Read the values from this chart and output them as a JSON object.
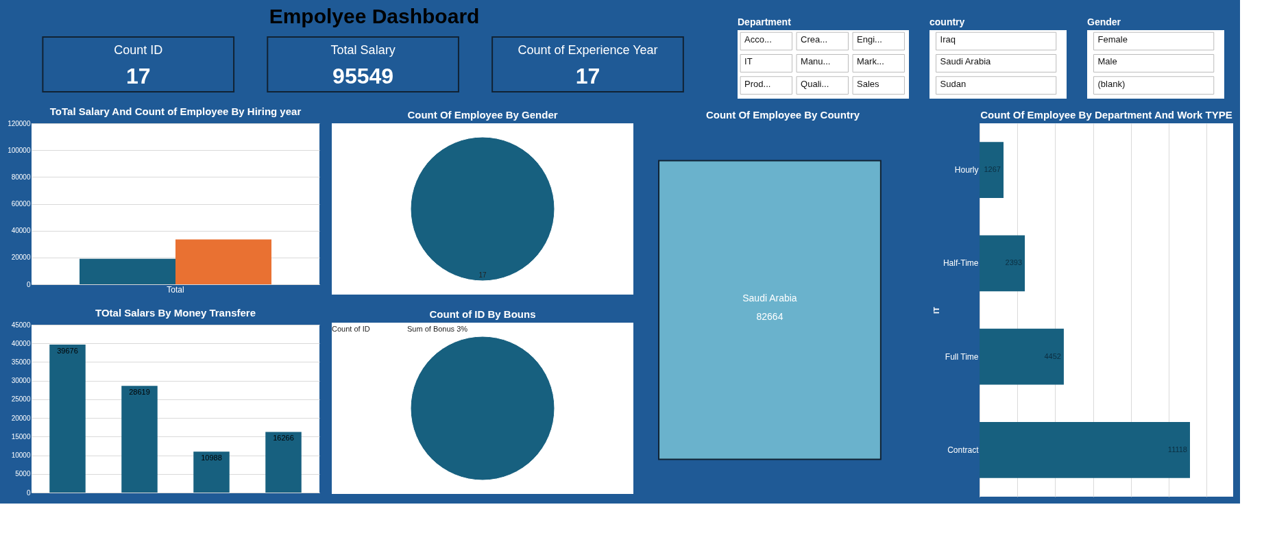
{
  "chart_data": [
    {
      "type": "other",
      "title": "Empolyee Dashboard",
      "categories": [
        "Count ID",
        "Total Salary",
        "Count of Experience Year"
      ],
      "values": [
        17,
        95549,
        17
      ],
      "colors": [
        "#1f5a96",
        "#1f5a96",
        "#1f5a96"
      ],
      "data_labels": true
    },
    {
      "type": "other",
      "title": "Department",
      "annotations": [
        "Acco...",
        "Crea...",
        "Engi...",
        "IT",
        "Manu...",
        "Mark...",
        "Prod...",
        "Quali...",
        "Sales"
      ]
    },
    {
      "type": "other",
      "title": "country",
      "annotations": [
        "Iraq",
        "Saudi Arabia",
        "Sudan"
      ]
    },
    {
      "type": "other",
      "title": "Gender",
      "annotations": [
        "Female",
        "Male",
        "(blank)"
      ]
    },
    {
      "type": "bar",
      "title": "ToTal Salary And Count of Employee By Hiring year",
      "categories": [
        "Total"
      ],
      "series": [
        {
          "color": "#17607f",
          "values": [
            19000
          ]
        },
        {
          "color": "#e97132",
          "values": [
            33500
          ]
        }
      ],
      "ylim": [
        0,
        120000
      ],
      "yticks": [
        0,
        20000,
        40000,
        60000,
        80000,
        100000,
        120000
      ],
      "grid": "y"
    },
    {
      "type": "pie",
      "title": "Count Of Employee By Gender",
      "categories": [
        null
      ],
      "values": [
        17
      ],
      "colors": [
        "#17607f"
      ],
      "data_labels": true
    },
    {
      "type": "other",
      "title": "Count Of Employee By Country",
      "categories": [
        "Saudi Arabia"
      ],
      "values": [
        82664
      ],
      "colors": [
        "#6ab2cc"
      ],
      "data_labels": true
    },
    {
      "type": "bar",
      "orientation": "horizontal",
      "title": "Count Of Employee By Department And Work TYPE",
      "ylabel": "IT",
      "categories": [
        "Hourly",
        "Half-Time",
        "Full Time",
        "Contract"
      ],
      "values": [
        1267,
        2393,
        4452,
        11118
      ],
      "color": "#17607f",
      "xlim": [
        0,
        13400
      ],
      "xticks": [
        {
          "value": 0,
          "label": null
        },
        {
          "value": 2000,
          "label": null
        },
        {
          "value": 4000,
          "label": null
        },
        {
          "value": 6000,
          "label": null
        },
        {
          "value": 8000,
          "label": null
        },
        {
          "value": 10000,
          "label": null
        },
        {
          "value": 12000,
          "label": null
        }
      ],
      "grid": "x",
      "tick_labels": "y",
      "data_labels": true
    },
    {
      "type": "bar",
      "title": "TOtal Salars By Money Transfere",
      "categories": [
        null,
        null,
        null,
        null
      ],
      "values": [
        39676,
        28619,
        10988,
        16266
      ],
      "color": "#17607f",
      "ylim": [
        0,
        45000
      ],
      "yticks": [
        0,
        5000,
        10000,
        15000,
        20000,
        25000,
        30000,
        35000,
        40000,
        45000
      ],
      "grid": "y",
      "tick_labels": "y",
      "data_labels": true
    },
    {
      "type": "pie",
      "title": "Count of ID By Bouns",
      "categories": [
        null
      ],
      "values": [
        100
      ],
      "colors": [
        "#17607f"
      ],
      "annotations": [
        "Count of ID",
        "Sum of Bonus 3%"
      ]
    }
  ]
}
